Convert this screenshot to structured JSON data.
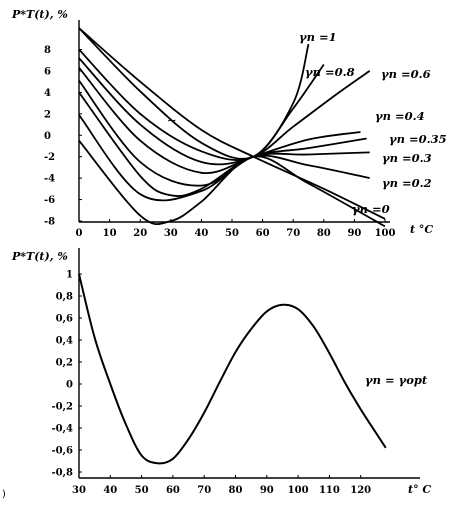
{
  "chart_data": [
    {
      "type": "line",
      "ylabel": "P*T(t), %",
      "xlabel": "t °C",
      "xlim": [
        0,
        100
      ],
      "ylim": [
        -8,
        10
      ],
      "x_ticks": [
        "0",
        "10",
        "20",
        "30",
        "40",
        "50",
        "60",
        "70",
        "80",
        "90",
        "100"
      ],
      "y_ticks": [
        "8",
        "6",
        "4",
        "2",
        "0",
        "-2",
        "-4",
        "-6",
        "-8"
      ],
      "series": [
        {
          "label": "γn =1",
          "x": [
            0,
            20,
            40,
            57,
            70,
            75
          ],
          "y": [
            10,
            4.1,
            -0.7,
            -2,
            3,
            8.5
          ]
        },
        {
          "label": "γn =0.8",
          "x": [
            0,
            20,
            40,
            57,
            70,
            80
          ],
          "y": [
            8,
            2,
            -1.5,
            -2,
            2.5,
            6.6
          ]
        },
        {
          "label": "γn =0.6",
          "x": [
            0,
            20,
            40,
            57,
            70,
            85,
            95
          ],
          "y": [
            7.2,
            1,
            -2.5,
            -2,
            0.8,
            4,
            6
          ]
        },
        {
          "label": "γn =0.4",
          "x": [
            0,
            20,
            40,
            57,
            75,
            92
          ],
          "y": [
            6.3,
            -0.5,
            -3.5,
            -2,
            -0.4,
            0.3
          ]
        },
        {
          "label": "γn =0.35",
          "x": [
            0,
            20,
            40,
            57,
            75,
            94
          ],
          "y": [
            5.1,
            -2.5,
            -4.7,
            -2,
            -1.2,
            -0.3
          ]
        },
        {
          "label": "γn =0.3",
          "x": [
            0,
            20,
            30,
            40,
            57,
            75,
            95
          ],
          "y": [
            4,
            -3.8,
            -5.6,
            -5,
            -2,
            -1.8,
            -1.6
          ]
        },
        {
          "label": "γn =0.2",
          "x": [
            0,
            20,
            40,
            57,
            75,
            95
          ],
          "y": [
            1.9,
            -5.5,
            -5.2,
            -2,
            -2.8,
            -4
          ]
        },
        {
          "label": "γn =0",
          "x": [
            0,
            20,
            30,
            40,
            57,
            75,
            100
          ],
          "y": [
            -0.5,
            -7.5,
            -8,
            -6.2,
            -2,
            -4.5,
            -8.5
          ]
        },
        {
          "label": "",
          "x": [
            0,
            20,
            40,
            57,
            80,
            100
          ],
          "y": [
            10,
            5,
            0.5,
            -2,
            -5,
            -7.8
          ]
        }
      ],
      "annotation_marker": "~"
    },
    {
      "type": "line",
      "ylabel": "P*T(t), %",
      "xlabel": "t° C",
      "xlim": [
        30,
        130
      ],
      "ylim": [
        -0.8,
        1
      ],
      "x_ticks": [
        "30",
        "40",
        "50",
        "60",
        "70",
        "80",
        "90",
        "100",
        "110",
        "120"
      ],
      "y_ticks": [
        "1",
        "0,8",
        "0,6",
        "0,4",
        "0,2",
        "0",
        "-0,2",
        "-0,4",
        "-0,6",
        "-0,8"
      ],
      "series": [
        {
          "label": "γn = γopt",
          "x": [
            30,
            35,
            40,
            45,
            50,
            55,
            60,
            65,
            70,
            75,
            80,
            85,
            90,
            95,
            100,
            105,
            110,
            115,
            120,
            125,
            128
          ],
          "y": [
            1,
            0.42,
            0,
            -0.37,
            -0.65,
            -0.72,
            -0.68,
            -0.5,
            -0.26,
            0.02,
            0.29,
            0.5,
            0.66,
            0.72,
            0.68,
            0.52,
            0.28,
            0.01,
            -0.23,
            -0.45,
            -0.58
          ]
        }
      ]
    }
  ],
  "stray_mark": ")"
}
